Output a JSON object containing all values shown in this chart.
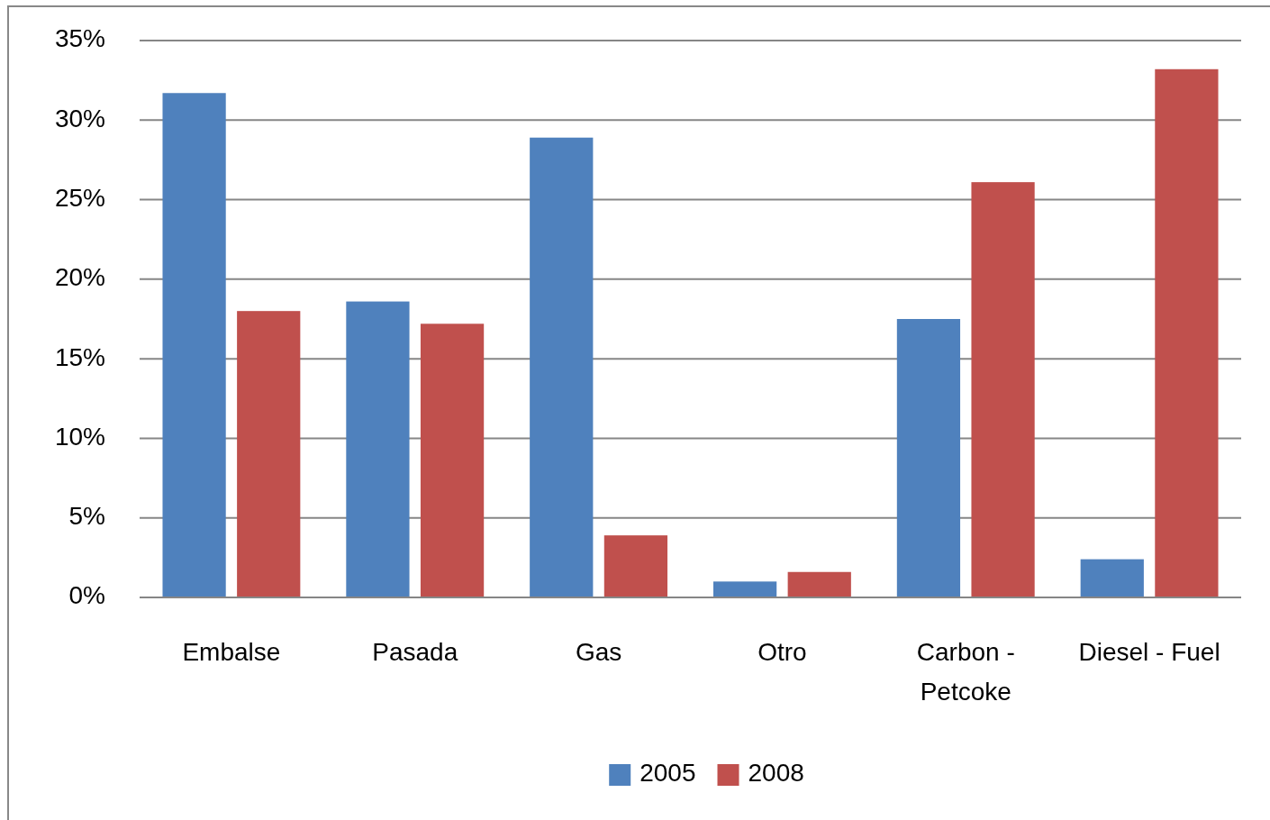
{
  "chart_data": {
    "type": "bar",
    "categories": [
      "Embalse",
      "Pasada",
      "Gas",
      "Otro",
      "Carbon - Petcoke",
      "Diesel - Fuel"
    ],
    "series": [
      {
        "name": "2005",
        "color": "#4f81bd",
        "values": [
          31.7,
          18.6,
          28.9,
          1.0,
          17.5,
          2.4
        ]
      },
      {
        "name": "2008",
        "color": "#c0504d",
        "values": [
          18.0,
          17.2,
          3.9,
          1.6,
          26.1,
          33.2
        ]
      }
    ],
    "ylim": [
      0,
      35
    ],
    "yticks": [
      {
        "value": 0,
        "label": "0%"
      },
      {
        "value": 5,
        "label": "5%"
      },
      {
        "value": 10,
        "label": "10%"
      },
      {
        "value": 15,
        "label": "15%"
      },
      {
        "value": 20,
        "label": "20%"
      },
      {
        "value": 25,
        "label": "25%"
      },
      {
        "value": 30,
        "label": "30%"
      },
      {
        "value": 35,
        "label": "35%"
      }
    ],
    "grid": "y",
    "legend": "bottom"
  }
}
